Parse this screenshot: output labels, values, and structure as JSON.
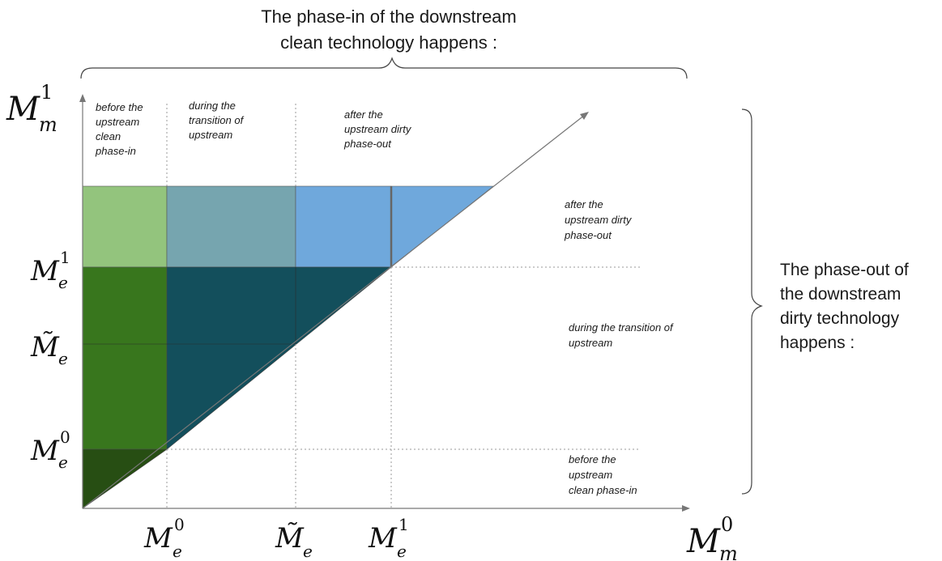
{
  "top_title": [
    "The phase-in of the downstream",
    "clean technology happens :"
  ],
  "right_title": [
    "The phase-out of",
    "the downstream",
    "dirty technology",
    "happens :"
  ],
  "column_notes": {
    "before": [
      "before the",
      "upstream",
      "clean",
      "phase-in"
    ],
    "during": [
      "during the",
      "transition of",
      "upstream"
    ],
    "after": [
      "after the",
      "upstream dirty",
      "phase-out"
    ]
  },
  "row_notes": {
    "after": [
      "after the",
      "upstream dirty",
      "phase-out"
    ],
    "during": [
      "during the transition of",
      "upstream"
    ],
    "before": [
      "before the",
      "upstream",
      "clean phase-in"
    ]
  },
  "axis_labels": {
    "y_axis": {
      "base": "M",
      "sub": "m",
      "sup": "1"
    },
    "x_axis": {
      "base": "M",
      "sub": "m",
      "sup": "0"
    },
    "y_ticks": [
      {
        "base": "M",
        "sub": "e",
        "sup": "1"
      },
      {
        "base": "M̃",
        "sub": "e",
        "sup": ""
      },
      {
        "base": "M",
        "sub": "e",
        "sup": "0"
      }
    ],
    "x_ticks": [
      {
        "base": "M",
        "sub": "e",
        "sup": "0"
      },
      {
        "base": "M̃",
        "sub": "e",
        "sup": ""
      },
      {
        "base": "M",
        "sub": "e",
        "sup": "1"
      }
    ]
  },
  "colors": {
    "light_green": "#93c47d",
    "dark_green": "#38761d",
    "darkest_green": "#274e13",
    "grey_teal": "#76a5af",
    "dark_teal": "#134f5c",
    "blue": "#6fa8dc"
  }
}
